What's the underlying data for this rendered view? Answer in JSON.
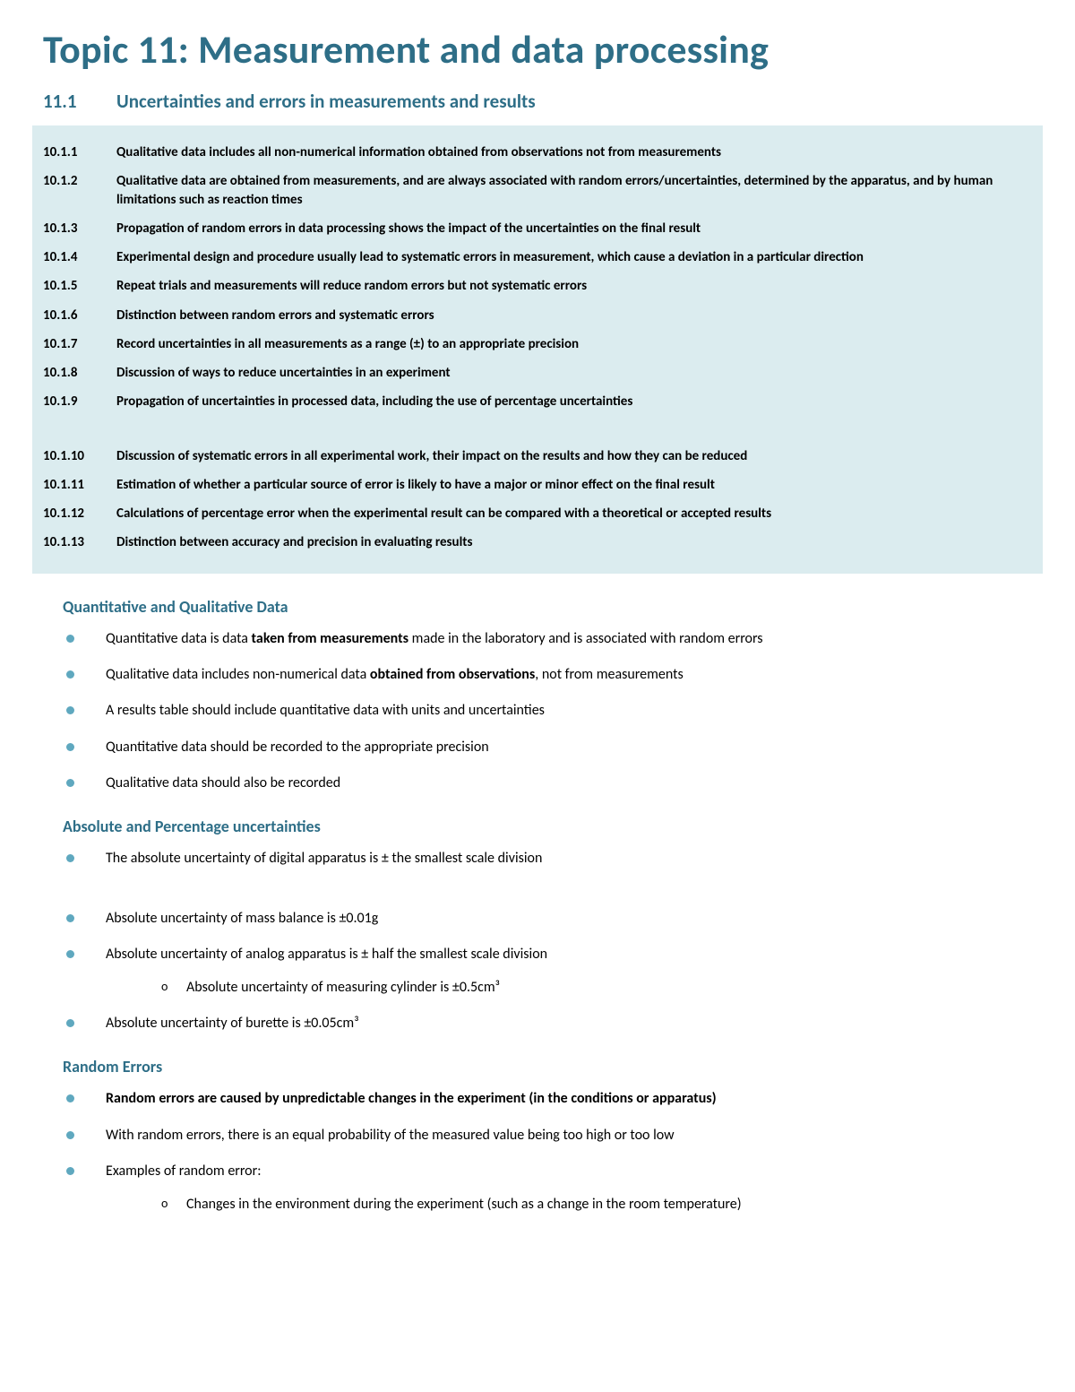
{
  "colors": {
    "heading": "#2e6e87",
    "outline_bg": "#dbecef",
    "bullet": "#5fa8bf",
    "text": "#000000",
    "page_bg": "#ffffff"
  },
  "typography": {
    "title_fontsize": 44,
    "section_fontsize": 21,
    "subheading_fontsize": 18,
    "body_fontsize": 16,
    "outline_fontsize": 15,
    "family": "Calibri"
  },
  "title": "Topic 11: Measurement and data processing",
  "section": {
    "number": "11.1",
    "title": "Uncertainties and errors in measurements and results"
  },
  "outline": [
    {
      "num": "10.1.1",
      "text": "Qualitative data includes all non-numerical information obtained from observations not from measurements"
    },
    {
      "num": "10.1.2",
      "text": "Qualitative data are obtained from measurements, and are always associated with random errors/uncertainties, determined by the apparatus, and by human limitations such as reaction times"
    },
    {
      "num": "10.1.3",
      "text": "Propagation of random errors in data processing shows the impact of the uncertainties on the final result"
    },
    {
      "num": "10.1.4",
      "text": "Experimental design and procedure usually lead to systematic errors in measurement, which cause a deviation in a particular direction"
    },
    {
      "num": "10.1.5",
      "text": "Repeat trials and measurements will reduce random errors but not systematic errors"
    },
    {
      "num": "10.1.6",
      "text": "Distinction between random errors and systematic errors"
    },
    {
      "num": "10.1.7",
      "text": "Record uncertainties in all measurements as a range (±) to an appropriate precision"
    },
    {
      "num": "10.1.8",
      "text": "Discussion of ways to reduce uncertainties in an experiment"
    },
    {
      "num": "10.1.9",
      "text": "Propagation of uncertainties in processed data, including the use of percentage uncertainties"
    },
    {
      "num": "10.1.10",
      "text": "Discussion of systematic errors in all experimental work, their impact on the results and how they can be reduced"
    },
    {
      "num": "10.1.11",
      "text": "Estimation of whether a particular source of error is likely to have a major or minor effect on the final result"
    },
    {
      "num": "10.1.12",
      "text": "Calculations of percentage error when the experimental result can be compared with a theoretical or accepted results"
    },
    {
      "num": "10.1.13",
      "text": "Distinction between accuracy and precision in evaluating results"
    }
  ],
  "subsections": [
    {
      "title": "Quantitative and Qualitative Data",
      "items": [
        {
          "html": "Quantitative data is data <b>taken from measurements</b> made in the laboratory and is associated with random errors"
        },
        {
          "html": "Qualitative data includes non-numerical data <b>obtained from observations</b>, not from measurements"
        },
        {
          "html": "A results table should include quantitative data with units and uncertainties"
        },
        {
          "html": "Quantitative data should be recorded to the appropriate precision"
        },
        {
          "html": "Qualitative data should also be recorded"
        }
      ]
    },
    {
      "title": "Absolute and Percentage uncertainties",
      "items": [
        {
          "html": "The absolute uncertainty of digital apparatus is ± the smallest scale division",
          "gap_after": true
        },
        {
          "html": "Absolute uncertainty of mass balance is ±0.01g"
        },
        {
          "html": "Absolute uncertainty of analog apparatus is ± half the smallest scale division",
          "sub": [
            "Absolute uncertainty of measuring cylinder is ±0.5cm³"
          ]
        },
        {
          "html": "Absolute uncertainty of burette is ±0.05cm³"
        }
      ]
    },
    {
      "title": "Random Errors",
      "items": [
        {
          "html": "Random errors are caused by unpredictable changes in the experiment (in the conditions or apparatus)",
          "bold": true
        },
        {
          "html": "With random errors, there is an equal probability of the measured value being too high or too low"
        },
        {
          "html": "Examples of random error:",
          "sub": [
            "Changes in the environment during the experiment (such as a change in the room temperature)"
          ]
        }
      ]
    }
  ]
}
